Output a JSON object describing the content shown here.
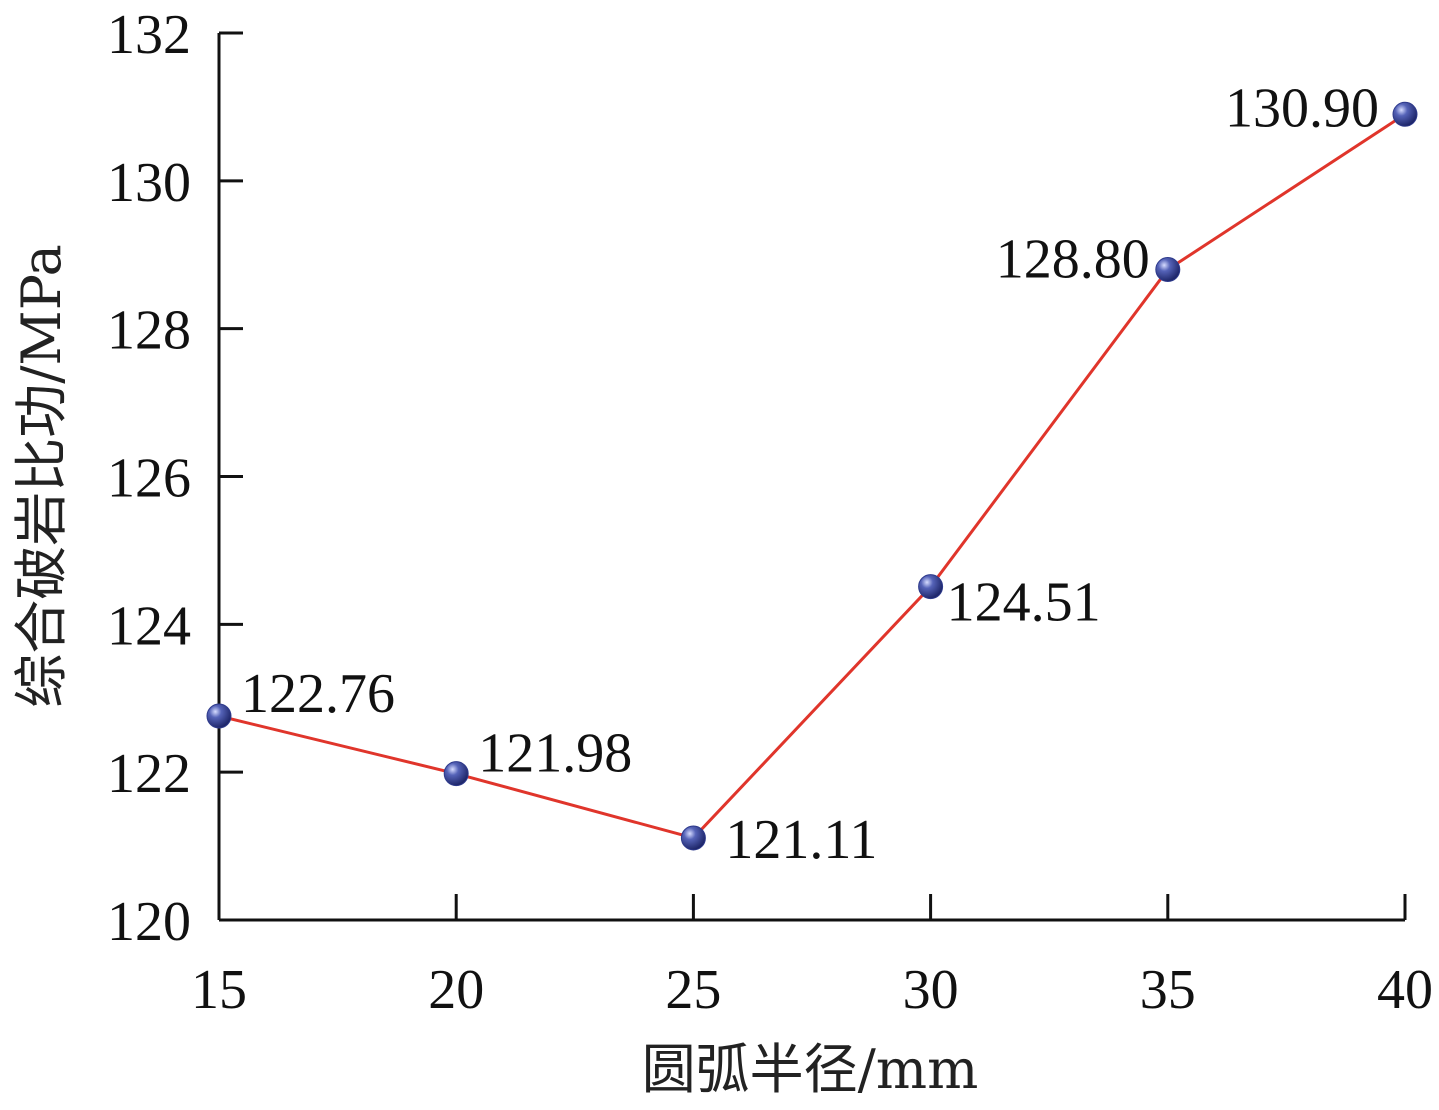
{
  "chart_data": {
    "type": "line",
    "title": "",
    "xlabel": "圆弧半径/mm",
    "ylabel": "综合破岩比功/MPa",
    "x": [
      15,
      20,
      25,
      30,
      35,
      40
    ],
    "xlim": [
      15,
      40
    ],
    "ylim": [
      120,
      132
    ],
    "x_ticks": [
      "15",
      "20",
      "25",
      "30",
      "35",
      "40"
    ],
    "y_ticks": [
      "120",
      "122",
      "124",
      "126",
      "128",
      "130",
      "132"
    ],
    "grid": false,
    "series": [
      {
        "values": [
          122.76,
          121.98,
          121.11,
          124.51,
          128.8,
          130.9
        ],
        "labels": [
          "122.76",
          "121.98",
          "121.11",
          "124.51",
          "128.80",
          "130.90"
        ],
        "line_color": "#e0352b",
        "marker_color": "#2e3a8c"
      }
    ]
  }
}
